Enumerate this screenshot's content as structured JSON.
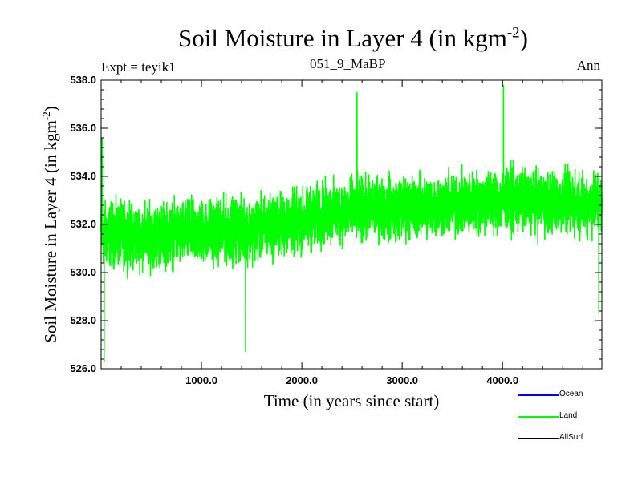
{
  "title_main": "Soil Moisture in Layer 4 (in kgm",
  "title_sup": "-2",
  "title_end": ")",
  "expt_label": "Expt = teyik1",
  "subtitle": "051_9_MaBP",
  "season": "Ann",
  "xlabel": "Time (in years since start)",
  "ylabel_main": "Soil Moisture in Layer 4 (in kgm",
  "ylabel_sup": "-2",
  "ylabel_end": ")",
  "legend": [
    {
      "name": "Ocean",
      "color": "#0000ff"
    },
    {
      "name": "Land",
      "color": "#00ff00"
    },
    {
      "name": "AllSurf",
      "color": "#000000"
    }
  ],
  "chart_data": {
    "type": "line",
    "title": "Soil Moisture in Layer 4 (in kgm-2)",
    "xlabel": "Time (in years since start)",
    "ylabel": "Soil Moisture in Layer 4 (in kgm-2)",
    "xlim": [
      0,
      4990
    ],
    "ylim": [
      526.0,
      538.0
    ],
    "xticks": [
      1000,
      2000,
      3000,
      4000
    ],
    "xtick_labels": [
      "1000.0",
      "2000.0",
      "3000.0",
      "4000.0"
    ],
    "yticks": [
      526,
      528,
      530,
      532,
      534,
      536,
      538
    ],
    "ytick_labels": [
      "526.0",
      "528.0",
      "530.0",
      "532.0",
      "534.0",
      "536.0",
      "538.0"
    ],
    "series": [
      {
        "name": "Land",
        "color": "#00ff00",
        "description": "Annual series, noisy (approx. +/-2 kgm-2), with rising trend",
        "trend_x": [
          0,
          500,
          1000,
          1500,
          2000,
          2200,
          2500,
          3000,
          3500,
          4000,
          4500,
          4990
        ],
        "trend_y": [
          531.6,
          531.5,
          531.7,
          531.8,
          532.1,
          532.4,
          532.6,
          532.7,
          532.8,
          533.0,
          532.9,
          532.9
        ],
        "noise_amplitude": 1.9,
        "extremes": [
          {
            "x": 10,
            "y": 535.6
          },
          {
            "x": 30,
            "y": 526.3
          },
          {
            "x": 1440,
            "y": 526.7
          },
          {
            "x": 2550,
            "y": 537.5
          },
          {
            "x": 4010,
            "y": 537.8
          },
          {
            "x": 4960,
            "y": 528.3
          }
        ]
      }
    ]
  }
}
